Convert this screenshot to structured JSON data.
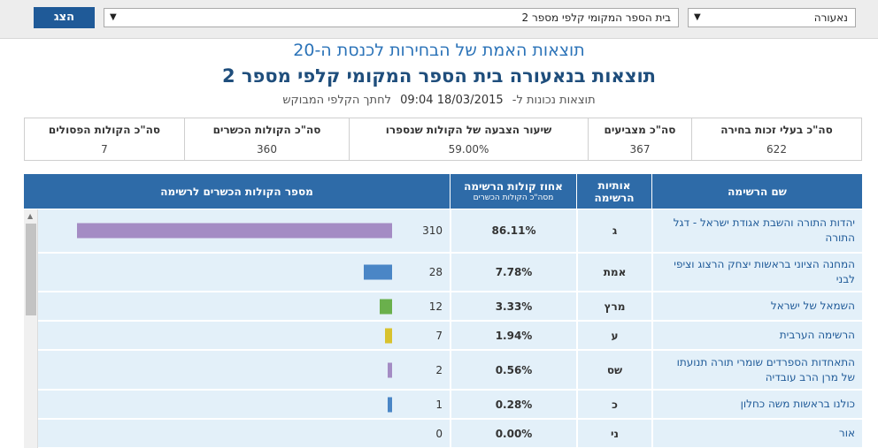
{
  "toolbar": {
    "show_label": "הצג",
    "town_value": "נאעורה",
    "school_value": "בית הספר המקומי קלפי מספר 2"
  },
  "header": {
    "subtitle": "תוצאות האמת של הבחירות לכנסת ה-20",
    "title": "תוצאות בנאעורה בית הספר המקומי קלפי מספר 2",
    "updated_prefix": "תוצאות נכונות ל-",
    "updated_datetime": "18/03/2015 09:04",
    "updated_suffix": "לחתך הקלפי המבוקש"
  },
  "summary": [
    {
      "label": "סה\"כ בעלי זכות בחירה",
      "value": "622"
    },
    {
      "label": "סה\"כ מצביעים",
      "value": "367"
    },
    {
      "label": "שיעור הצבעה של הקולות שנספרו",
      "value": "59.00%"
    },
    {
      "label": "סה\"כ הקולות הכשרים",
      "value": "360"
    },
    {
      "label": "סה\"כ הקולות הפסולים",
      "value": "7"
    }
  ],
  "table": {
    "headers": {
      "name": "שם הרשימה",
      "letters_line1": "אותיות",
      "letters_line2": "הרשימה",
      "pct_line1": "אחוז קולות הרשימה",
      "pct_line2": "מסה\"כ הקולות הכשרים",
      "votes": "מספר הקולות הכשרים לרשימה"
    },
    "max_votes": 310,
    "rows": [
      {
        "name": "יהדות התורה והשבת אגודת ישראל - דגל התורה",
        "letters": "ג",
        "pct": "86.11%",
        "votes": 310,
        "color": "#a48cc4",
        "height": 50
      },
      {
        "name": "המחנה הציוני בראשות יצחק הרצוג וציפי לבני",
        "letters": "אמת",
        "pct": "7.78%",
        "votes": 28,
        "color": "#4a86c6",
        "height": 44
      },
      {
        "name": "השמאל של ישראל",
        "letters": "מרץ",
        "pct": "3.33%",
        "votes": 12,
        "color": "#6ab04c",
        "height": 33
      },
      {
        "name": "הרשימה הערבית",
        "letters": "ע",
        "pct": "1.94%",
        "votes": 7,
        "color": "#d8c22e",
        "height": 33
      },
      {
        "name": "התאחדות הספרדים שומרי תורה תנועתו של מרן הרב עובדיה",
        "letters": "שס",
        "pct": "0.56%",
        "votes": 2,
        "color": "#a48cc4",
        "height": 45
      },
      {
        "name": "כולנו בראשות משה כחלון",
        "letters": "כ",
        "pct": "0.28%",
        "votes": 1,
        "color": "#4a86c6",
        "height": 33
      },
      {
        "name": "אור",
        "letters": "ני",
        "pct": "0.00%",
        "votes": 0,
        "color": "#4a86c6",
        "height": 33
      }
    ]
  }
}
